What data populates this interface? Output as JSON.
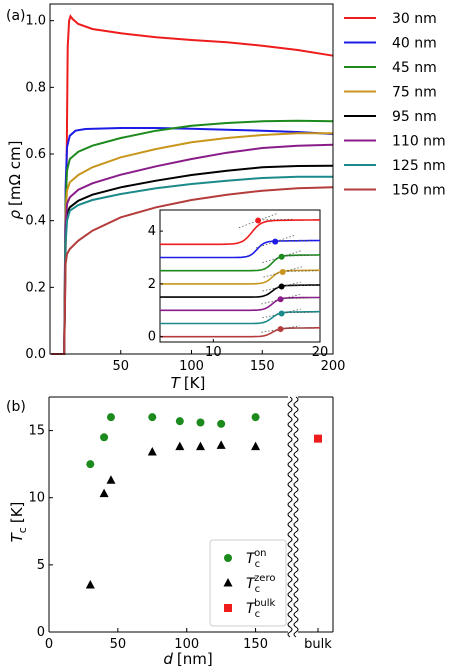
{
  "chart_data": [
    {
      "panel_label": "(a)",
      "type": "line",
      "xlabel": "T",
      "xunit": "[K]",
      "ylabel": "ρ",
      "yunit": "[mΩ cm]",
      "xlim": [
        0,
        200
      ],
      "ylim": [
        0,
        1.05
      ],
      "xticks": [
        "50",
        "100",
        "150",
        "200"
      ],
      "yticks": [
        "0.0",
        "0.2",
        "0.4",
        "0.6",
        "0.8",
        "1.0"
      ],
      "legend_position": "outside-right",
      "series": [
        {
          "name": "30 nm",
          "color": "#ee1c1c",
          "points": [
            [
              1,
              0.0
            ],
            [
              10,
              0.0
            ],
            [
              11.5,
              0.45
            ],
            [
              12.5,
              0.92
            ],
            [
              13.5,
              1.0
            ],
            [
              14.5,
              1.013
            ],
            [
              16,
              1.005
            ],
            [
              20,
              0.99
            ],
            [
              30,
              0.975
            ],
            [
              50,
              0.962
            ],
            [
              75,
              0.95
            ],
            [
              100,
              0.942
            ],
            [
              125,
              0.935
            ],
            [
              150,
              0.925
            ],
            [
              175,
              0.912
            ],
            [
              200,
              0.895
            ]
          ]
        },
        {
          "name": "40 nm",
          "color": "#1c1ce6",
          "points": [
            [
              1,
              0.0
            ],
            [
              10,
              0.0
            ],
            [
              11,
              0.5
            ],
            [
              12,
              0.62
            ],
            [
              14,
              0.655
            ],
            [
              18,
              0.67
            ],
            [
              25,
              0.675
            ],
            [
              50,
              0.678
            ],
            [
              75,
              0.678
            ],
            [
              100,
              0.676
            ],
            [
              125,
              0.673
            ],
            [
              150,
              0.67
            ],
            [
              175,
              0.666
            ],
            [
              200,
              0.66
            ]
          ]
        },
        {
          "name": "45 nm",
          "color": "#1c8a1c",
          "points": [
            [
              1,
              0.0
            ],
            [
              10,
              0.0
            ],
            [
              11,
              0.45
            ],
            [
              12,
              0.55
            ],
            [
              14,
              0.585
            ],
            [
              20,
              0.607
            ],
            [
              30,
              0.625
            ],
            [
              50,
              0.648
            ],
            [
              75,
              0.67
            ],
            [
              100,
              0.685
            ],
            [
              125,
              0.693
            ],
            [
              150,
              0.698
            ],
            [
              175,
              0.7
            ],
            [
              200,
              0.698
            ]
          ]
        },
        {
          "name": "75 nm",
          "color": "#c8961c",
          "points": [
            [
              1,
              0.0
            ],
            [
              10,
              0.0
            ],
            [
              11,
              0.42
            ],
            [
              12,
              0.49
            ],
            [
              14,
              0.515
            ],
            [
              20,
              0.537
            ],
            [
              30,
              0.56
            ],
            [
              50,
              0.59
            ],
            [
              75,
              0.615
            ],
            [
              100,
              0.635
            ],
            [
              125,
              0.648
            ],
            [
              150,
              0.657
            ],
            [
              175,
              0.662
            ],
            [
              200,
              0.662
            ]
          ]
        },
        {
          "name": "95 nm",
          "color": "#000000",
          "points": [
            [
              1,
              0.0
            ],
            [
              10,
              0.0
            ],
            [
              11,
              0.35
            ],
            [
              12,
              0.42
            ],
            [
              14,
              0.44
            ],
            [
              20,
              0.46
            ],
            [
              30,
              0.478
            ],
            [
              50,
              0.5
            ],
            [
              75,
              0.52
            ],
            [
              100,
              0.537
            ],
            [
              125,
              0.55
            ],
            [
              150,
              0.56
            ],
            [
              175,
              0.564
            ],
            [
              200,
              0.565
            ]
          ]
        },
        {
          "name": "110 nm",
          "color": "#8a1c8a",
          "points": [
            [
              1,
              0.0
            ],
            [
              10,
              0.0
            ],
            [
              11,
              0.38
            ],
            [
              12,
              0.45
            ],
            [
              14,
              0.47
            ],
            [
              20,
              0.493
            ],
            [
              30,
              0.512
            ],
            [
              50,
              0.538
            ],
            [
              75,
              0.563
            ],
            [
              100,
              0.585
            ],
            [
              125,
              0.604
            ],
            [
              150,
              0.618
            ],
            [
              175,
              0.625
            ],
            [
              200,
              0.628
            ]
          ]
        },
        {
          "name": "125 nm",
          "color": "#1c8a8a",
          "points": [
            [
              1,
              0.0
            ],
            [
              10,
              0.0
            ],
            [
              11,
              0.33
            ],
            [
              12,
              0.4
            ],
            [
              14,
              0.43
            ],
            [
              20,
              0.447
            ],
            [
              30,
              0.462
            ],
            [
              50,
              0.48
            ],
            [
              75,
              0.497
            ],
            [
              100,
              0.51
            ],
            [
              125,
              0.52
            ],
            [
              150,
              0.528
            ],
            [
              175,
              0.532
            ],
            [
              200,
              0.532
            ]
          ]
        },
        {
          "name": "150 nm",
          "color": "#b43c3c",
          "points": [
            [
              1,
              0.0
            ],
            [
              10,
              0.0
            ],
            [
              11,
              0.27
            ],
            [
              12,
              0.3
            ],
            [
              14,
              0.315
            ],
            [
              20,
              0.34
            ],
            [
              30,
              0.37
            ],
            [
              50,
              0.41
            ],
            [
              75,
              0.44
            ],
            [
              100,
              0.462
            ],
            [
              125,
              0.478
            ],
            [
              150,
              0.49
            ],
            [
              175,
              0.497
            ],
            [
              200,
              0.5
            ]
          ]
        }
      ],
      "inset": {
        "xlim": [
          5,
          20
        ],
        "ylim": [
          -0.2,
          4.8
        ],
        "xticks": [
          "10",
          "20"
        ],
        "yticks": [
          "0",
          "2",
          "4"
        ],
        "curves": [
          {
            "offset": 3.5,
            "rise": 0.9,
            "tc": 13.6,
            "w": 0.45,
            "marker": [
              14.2,
              4.4
            ]
          },
          {
            "offset": 3.0,
            "rise": 0.62,
            "tc": 14.1,
            "w": 0.35,
            "marker": [
              15.8,
              3.6
            ]
          },
          {
            "offset": 2.5,
            "rise": 0.58,
            "tc": 15.5,
            "w": 0.35,
            "marker": [
              16.4,
              3.03
            ]
          },
          {
            "offset": 2.0,
            "rise": 0.5,
            "tc": 15.5,
            "w": 0.35,
            "marker": [
              16.5,
              2.45
            ]
          },
          {
            "offset": 1.5,
            "rise": 0.44,
            "tc": 15.5,
            "w": 0.35,
            "marker": [
              16.4,
              1.9
            ]
          },
          {
            "offset": 1.0,
            "rise": 0.47,
            "tc": 15.5,
            "w": 0.35,
            "marker": [
              16.3,
              1.42
            ]
          },
          {
            "offset": 0.5,
            "rise": 0.43,
            "tc": 15.5,
            "w": 0.35,
            "marker": [
              16.4,
              0.88
            ]
          },
          {
            "offset": 0.0,
            "rise": 0.32,
            "tc": 15.5,
            "w": 0.35,
            "marker": [
              16.3,
              0.29
            ]
          }
        ]
      }
    },
    {
      "panel_label": "(b)",
      "type": "scatter",
      "xlabel": "d",
      "xunit": "[nm]",
      "ylabel": "T",
      "ylabel_sub": "c",
      "yunit": "[K]",
      "xlim": [
        0,
        175
      ],
      "ylim": [
        0,
        17.5
      ],
      "xticks": [
        "0",
        "50",
        "100",
        "150"
      ],
      "yticks": [
        "0",
        "5",
        "10",
        "15"
      ],
      "bulk_tick": "bulk",
      "legend_position": "lower-right",
      "series": [
        {
          "name": "T",
          "sub": "c",
          "sup": "on",
          "marker": "circle",
          "color": "#1c8a1c",
          "x": [
            30,
            40,
            45,
            75,
            95,
            110,
            125,
            150
          ],
          "y": [
            12.5,
            14.5,
            16.0,
            16.0,
            15.7,
            15.6,
            15.5,
            16.0
          ]
        },
        {
          "name": "T",
          "sub": "c",
          "sup": "zero",
          "marker": "triangle",
          "color": "#000000",
          "x": [
            30,
            40,
            45,
            75,
            95,
            110,
            125,
            150
          ],
          "y": [
            3.5,
            10.3,
            11.3,
            13.4,
            13.8,
            13.8,
            13.9,
            13.8
          ]
        },
        {
          "name": "T",
          "sub": "c",
          "sup": "bulk",
          "marker": "square",
          "color": "#ee1c1c",
          "x": [
            "bulk"
          ],
          "y": [
            14.4
          ]
        }
      ]
    }
  ]
}
